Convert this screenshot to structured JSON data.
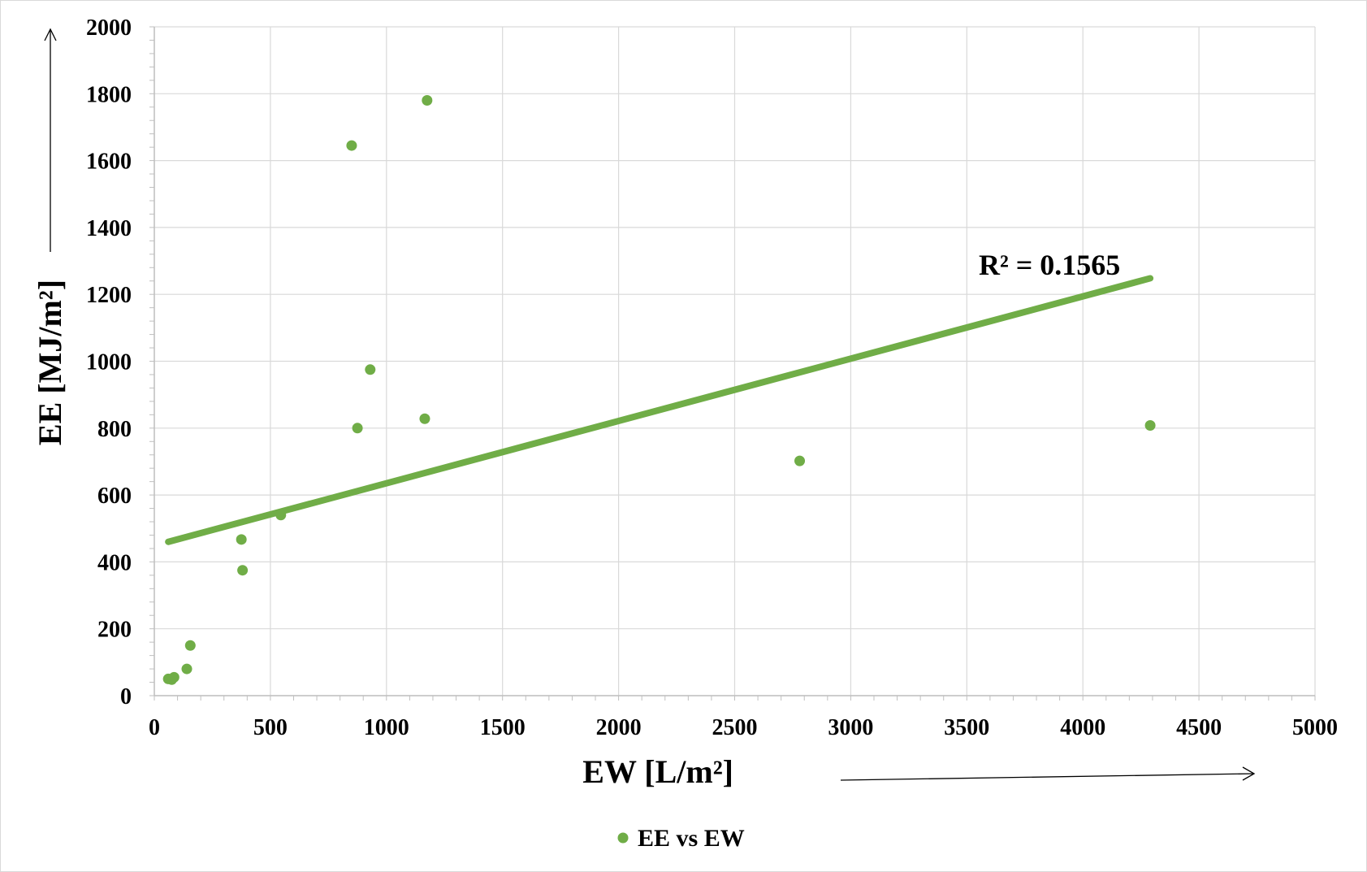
{
  "chart_data": {
    "type": "scatter",
    "xlabel": "EW [L/m²]",
    "ylabel": "EE [MJ/m²]",
    "xlim": [
      0,
      5000
    ],
    "ylim": [
      0,
      2000
    ],
    "x_ticks": [
      "0",
      "500",
      "1000",
      "1500",
      "2000",
      "2500",
      "3000",
      "3500",
      "4000",
      "4500",
      "5000"
    ],
    "y_ticks": [
      "0",
      "200",
      "400",
      "600",
      "800",
      "1000",
      "1200",
      "1400",
      "1600",
      "1800",
      "2000"
    ],
    "grid": true,
    "legend_position": "bottom",
    "series": [
      {
        "name": "EE vs EW",
        "color": "#70ad47",
        "points": [
          {
            "x": 60,
            "y": 50
          },
          {
            "x": 75,
            "y": 48
          },
          {
            "x": 85,
            "y": 55
          },
          {
            "x": 140,
            "y": 80
          },
          {
            "x": 155,
            "y": 150
          },
          {
            "x": 375,
            "y": 467
          },
          {
            "x": 380,
            "y": 375
          },
          {
            "x": 545,
            "y": 540
          },
          {
            "x": 850,
            "y": 1645
          },
          {
            "x": 875,
            "y": 800
          },
          {
            "x": 930,
            "y": 975
          },
          {
            "x": 1165,
            "y": 828
          },
          {
            "x": 1175,
            "y": 1780
          },
          {
            "x": 2780,
            "y": 702
          },
          {
            "x": 4290,
            "y": 808
          }
        ]
      }
    ],
    "trendline": {
      "type": "linear",
      "x_range": [
        60,
        4290
      ],
      "y_range": [
        460,
        1248
      ],
      "color": "#70ad47",
      "label": "R² = 0.1565"
    }
  }
}
